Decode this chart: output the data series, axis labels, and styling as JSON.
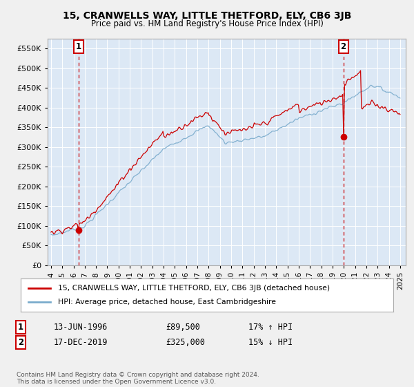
{
  "title": "15, CRANWELLS WAY, LITTLE THETFORD, ELY, CB6 3JB",
  "subtitle": "Price paid vs. HM Land Registry's House Price Index (HPI)",
  "legend_line1": "15, CRANWELLS WAY, LITTLE THETFORD, ELY, CB6 3JB (detached house)",
  "legend_line2": "HPI: Average price, detached house, East Cambridgeshire",
  "annotation1_date": "13-JUN-1996",
  "annotation1_price": "£89,500",
  "annotation1_hpi": "17% ↑ HPI",
  "annotation2_date": "17-DEC-2019",
  "annotation2_price": "£325,000",
  "annotation2_hpi": "15% ↓ HPI",
  "footnote": "Contains HM Land Registry data © Crown copyright and database right 2024.\nThis data is licensed under the Open Government Licence v3.0.",
  "red_color": "#cc0000",
  "blue_color": "#7aabcc",
  "grid_color": "#cccccc",
  "plot_bg": "#dce8f5",
  "fig_bg": "#f0f0f0",
  "ylim": [
    0,
    575000
  ],
  "yticks": [
    0,
    50000,
    100000,
    150000,
    200000,
    250000,
    300000,
    350000,
    400000,
    450000,
    500000,
    550000
  ],
  "marker1_x": 1996.45,
  "marker1_y": 89500,
  "marker2_x": 2019.96,
  "marker2_y": 325000,
  "vline1_x": 1996.45,
  "vline2_x": 2019.96,
  "xlim_lo": 1993.7,
  "xlim_hi": 2025.5
}
